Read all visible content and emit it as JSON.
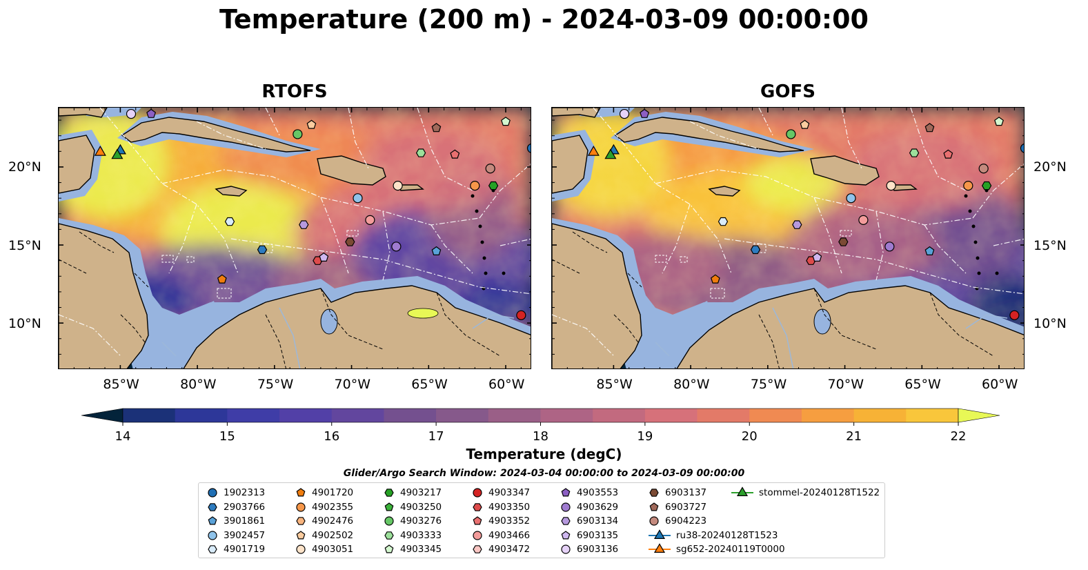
{
  "title": "Temperature (200 m) - 2024-03-09 00:00:00",
  "panels": [
    {
      "title": "RTOFS",
      "variant": "rtofs"
    },
    {
      "title": "GOFS",
      "variant": "gofs"
    }
  ],
  "lon_ticks": [
    "85°W",
    "80°W",
    "75°W",
    "70°W",
    "65°W",
    "60°W"
  ],
  "lat_ticks": [
    "20°N",
    "15°N",
    "10°N"
  ],
  "map_extent": {
    "lon": [
      -89,
      -58.3
    ],
    "lat": [
      7,
      23.8
    ]
  },
  "colorbar": {
    "title": "Temperature (degC)",
    "ticks": [
      "14",
      "15",
      "16",
      "17",
      "18",
      "19",
      "20",
      "21",
      "22"
    ],
    "range": [
      14,
      22
    ],
    "colors": [
      "#03233a",
      "#0b2f52",
      "#1b3178",
      "#2d3799",
      "#3f3da7",
      "#5240a7",
      "#62469e",
      "#74508f",
      "#86598b",
      "#9a5f87",
      "#ae6485",
      "#c26a7f",
      "#d6717a",
      "#e37a68",
      "#f08a52",
      "#f69e40",
      "#f7b236",
      "#f9c63b",
      "#f5dc40",
      "#eaf150",
      "#e8f856"
    ]
  },
  "search_window": "Glider/Argo Search Window: 2024-03-04 00:00:00 to 2024-03-09 00:00:00",
  "legend": [
    {
      "label": "1902313",
      "marker": "circle",
      "color": "#1f6fb4"
    },
    {
      "label": "2903766",
      "marker": "hexagon",
      "color": "#2e7cc0"
    },
    {
      "label": "3901861",
      "marker": "pentagon",
      "color": "#5aa2d8"
    },
    {
      "label": "3902457",
      "marker": "circle",
      "color": "#8fc3ea"
    },
    {
      "label": "4901719",
      "marker": "hexagon",
      "color": "#d9ecfa"
    },
    {
      "label": "4901720",
      "marker": "pentagon",
      "color": "#f07d0e"
    },
    {
      "label": "4902355",
      "marker": "circle",
      "color": "#f6974a"
    },
    {
      "label": "4902476",
      "marker": "hexagon",
      "color": "#f8b47e"
    },
    {
      "label": "4902502",
      "marker": "pentagon",
      "color": "#fbcc9f"
    },
    {
      "label": "4903051",
      "marker": "circle",
      "color": "#fde3c9"
    },
    {
      "label": "4903217",
      "marker": "hexagon",
      "color": "#26a125"
    },
    {
      "label": "4903250",
      "marker": "pentagon",
      "color": "#3cb33b"
    },
    {
      "label": "4903276",
      "marker": "circle",
      "color": "#66c766"
    },
    {
      "label": "4903333",
      "marker": "hexagon",
      "color": "#9ce09b"
    },
    {
      "label": "4903345",
      "marker": "pentagon",
      "color": "#d4f7cf"
    },
    {
      "label": "4903347",
      "marker": "circle",
      "color": "#d42323"
    },
    {
      "label": "4903350",
      "marker": "hexagon",
      "color": "#de4b4b"
    },
    {
      "label": "4903352",
      "marker": "pentagon",
      "color": "#e97070"
    },
    {
      "label": "4903466",
      "marker": "circle",
      "color": "#f39c9b"
    },
    {
      "label": "4903472",
      "marker": "hexagon",
      "color": "#fbc7c4"
    },
    {
      "label": "4903553",
      "marker": "pentagon",
      "color": "#8c5fc3"
    },
    {
      "label": "4903629",
      "marker": "circle",
      "color": "#9f7bd0"
    },
    {
      "label": "6903134",
      "marker": "hexagon",
      "color": "#b699de"
    },
    {
      "label": "6903135",
      "marker": "pentagon",
      "color": "#cfb8f0"
    },
    {
      "label": "6903136",
      "marker": "circle",
      "color": "#e6d2f8"
    },
    {
      "label": "6903137",
      "marker": "hexagon",
      "color": "#7b4a34"
    },
    {
      "label": "6903727",
      "marker": "pentagon",
      "color": "#a0695a"
    },
    {
      "label": "6904223",
      "marker": "circle",
      "color": "#c48a7e"
    },
    {
      "label": "ru38-20240128T1523",
      "marker": "triangle-line",
      "color": "#1f77b4"
    },
    {
      "label": "sg652-20240119T0000",
      "marker": "triangle-line",
      "color": "#ff7f0e"
    },
    {
      "label": "stommel-20240128T1522",
      "marker": "triangle-line",
      "color": "#2ca02c"
    }
  ],
  "floats": [
    {
      "id": "6903136",
      "lon": -84.3,
      "lat": 23.4
    },
    {
      "id": "4903553",
      "lon": -83.0,
      "lat": 23.4
    },
    {
      "id": "4902502",
      "lon": -72.6,
      "lat": 22.7
    },
    {
      "id": "4903276",
      "lon": -73.5,
      "lat": 22.1
    },
    {
      "id": "6903727",
      "lon": -64.5,
      "lat": 22.5
    },
    {
      "id": "4903345",
      "lon": -60.0,
      "lat": 22.9
    },
    {
      "id": "1902313",
      "lon": -58.3,
      "lat": 21.2
    },
    {
      "id": "4903333",
      "lon": -65.5,
      "lat": 20.9
    },
    {
      "id": "4903352",
      "lon": -63.3,
      "lat": 20.8
    },
    {
      "id": "6904223",
      "lon": -61.0,
      "lat": 19.9
    },
    {
      "id": "4903051",
      "lon": -67.0,
      "lat": 18.8
    },
    {
      "id": "4902355",
      "lon": -62.0,
      "lat": 18.8
    },
    {
      "id": "4903217",
      "lon": -60.8,
      "lat": 18.8
    },
    {
      "id": "3902457",
      "lon": -69.6,
      "lat": 18.0
    },
    {
      "id": "4903466",
      "lon": -68.8,
      "lat": 16.6
    },
    {
      "id": "4901719",
      "lon": -77.9,
      "lat": 16.5
    },
    {
      "id": "6903134",
      "lon": -73.1,
      "lat": 16.3
    },
    {
      "id": "6903137",
      "lon": -70.1,
      "lat": 15.2
    },
    {
      "id": "4903629",
      "lon": -67.1,
      "lat": 14.9
    },
    {
      "id": "2903766",
      "lon": -75.8,
      "lat": 14.7
    },
    {
      "id": "3901861",
      "lon": -64.5,
      "lat": 14.6
    },
    {
      "id": "4903350",
      "lon": -72.2,
      "lat": 14.0
    },
    {
      "id": "6903135",
      "lon": -71.8,
      "lat": 14.2
    },
    {
      "id": "4901720",
      "lon": -78.4,
      "lat": 12.8
    },
    {
      "id": "4903347",
      "lon": -59.0,
      "lat": 10.5
    }
  ],
  "gliders": [
    {
      "id": "sg652-20240119T0000",
      "lon": -86.3,
      "lat": 21.0
    },
    {
      "id": "ru38-20240128T1523",
      "lon": -85.0,
      "lat": 21.1
    },
    {
      "id": "stommel-20240128T1522",
      "lon": -85.2,
      "lat": 20.8
    }
  ]
}
